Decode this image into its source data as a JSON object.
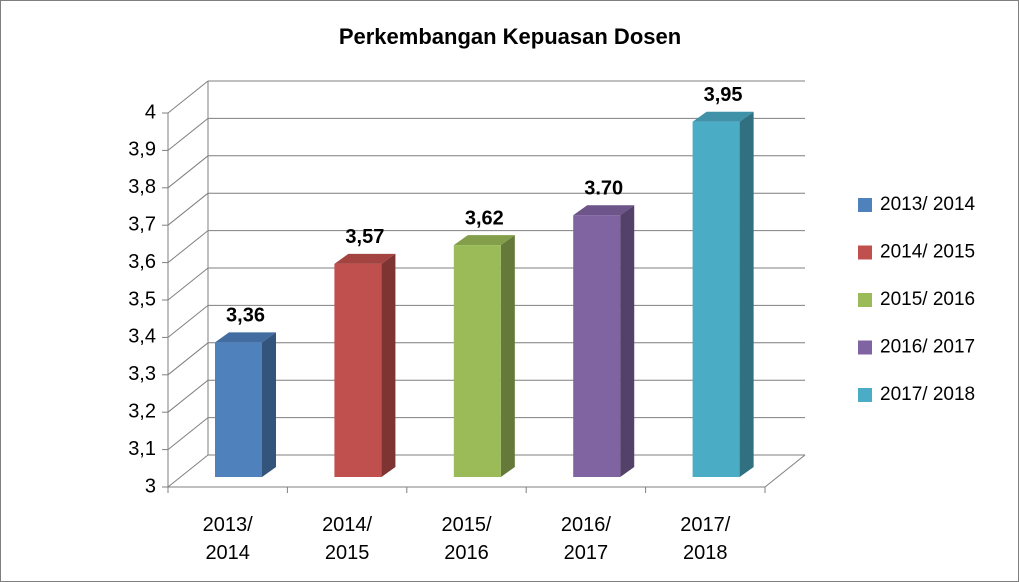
{
  "chart_data": {
    "type": "bar3d",
    "title": "Perkembangan Kepuasan Dosen",
    "categories": [
      "2013/ 2014",
      "2014/ 2015",
      "2015/ 2016",
      "2016/ 2017",
      "2017/ 2018"
    ],
    "values": [
      3.36,
      3.57,
      3.62,
      3.7,
      3.95
    ],
    "value_labels": [
      "3,36",
      "3,57",
      "3,62",
      "3.70",
      "3,95"
    ],
    "colors": [
      "#4f81bd",
      "#c0504d",
      "#9bbb59",
      "#8064a2",
      "#4bacc6"
    ],
    "ylim": [
      3,
      4
    ],
    "yticks": [
      3,
      {
        "value": 3.1,
        "label": "3,1"
      },
      {
        "value": 3.2,
        "label": "3,2"
      },
      {
        "value": 3.3,
        "label": "3,3"
      },
      {
        "value": 3.4,
        "label": "3,4"
      },
      {
        "value": 3.5,
        "label": "3,5"
      },
      {
        "value": 3.6,
        "label": "3,6"
      },
      {
        "value": 3.7,
        "label": "3,7"
      },
      {
        "value": 3.8,
        "label": "3,8"
      },
      {
        "value": 3.9,
        "label": "3,9"
      },
      4
    ],
    "grid": true,
    "legend": "right"
  }
}
